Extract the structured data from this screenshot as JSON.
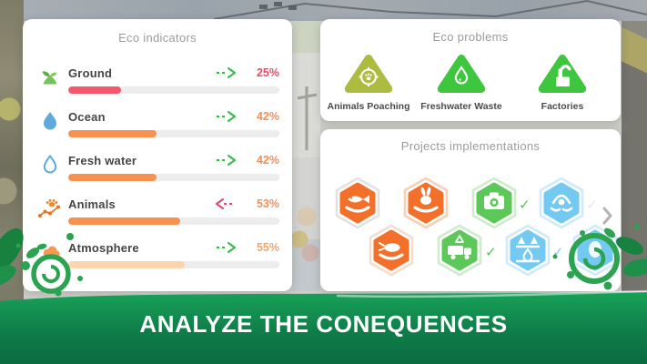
{
  "indicators": {
    "title": "Eco indicators",
    "rows": [
      {
        "label": "Ground",
        "icon": "sprout-icon",
        "value": 25,
        "percent_label": "25%",
        "trend": "right",
        "trend_color": "#35b94a",
        "bar_color": "#f5586e",
        "value_color": "#ee4762"
      },
      {
        "label": "Ocean",
        "icon": "water-drop-icon",
        "value": 42,
        "percent_label": "42%",
        "trend": "right",
        "trend_color": "#35b94a",
        "bar_color": "#f8914e",
        "value_color": "#f68f56"
      },
      {
        "label": "Fresh water",
        "icon": "water-drop-outline-icon",
        "value": 42,
        "percent_label": "42%",
        "trend": "right",
        "trend_color": "#35b94a",
        "bar_color": "#f8914e",
        "value_color": "#f68f56"
      },
      {
        "label": "Animals",
        "icon": "paw-trend-icon",
        "value": 53,
        "percent_label": "53%",
        "trend": "left",
        "trend_color": "#e2476f",
        "bar_color": "#f8914e",
        "value_color": "#f68f56"
      },
      {
        "label": "Atmosphere",
        "icon": "cloud-icon",
        "value": 55,
        "percent_label": "55%",
        "trend": "right",
        "trend_color": "#35b94a",
        "bar_color": "#fbd5ab",
        "value_color": "#f6a368"
      }
    ]
  },
  "problems": {
    "title": "Eco problems",
    "items": [
      {
        "label": "Animals Poaching",
        "icon": "poaching-target-paw-icon",
        "color": "#adbc41"
      },
      {
        "label": "Freshwater Waste",
        "icon": "water-drop-badge-icon",
        "color": "#3fc63f"
      },
      {
        "label": "Factories",
        "icon": "factory-icon",
        "color": "#3fc63f"
      }
    ]
  },
  "projects": {
    "title": "Projects implementations",
    "scroll_icon": "chevron-right-icon",
    "items": [
      {
        "icon": "fish-in-hand-icon",
        "color": "orange",
        "ring": "#e2e2e2",
        "check": null
      },
      {
        "icon": "rabbit-in-hand-icon",
        "color": "orange",
        "ring": "#f6cfb5",
        "check": null
      },
      {
        "icon": "camera-trap-icon",
        "color": "green",
        "ring": "#cdeccb",
        "check": "#52c356"
      },
      {
        "icon": "wildlife-care-icon",
        "color": "blue",
        "ring": "#cfeafb",
        "check": "#dde9ef"
      },
      {
        "icon": "beetle-in-hand-icon",
        "color": "orange",
        "ring": "#f2ddd0",
        "check": null
      },
      {
        "icon": "recycling-truck-icon",
        "color": "green",
        "ring": "#cdeccb",
        "check": "#52c356"
      },
      {
        "icon": "forest-water-icon",
        "color": "blue",
        "ring": "#cfeafb",
        "check": "#7fcef2"
      },
      {
        "icon": "eco-project-icon",
        "color": "blue",
        "ring": "#cfeafb",
        "check": null
      }
    ]
  },
  "banner": {
    "label": "ANALYZE THE CONEQUENCES"
  },
  "colors": {
    "hex": {
      "orange": {
        "fill": "#f2702a"
      },
      "green": {
        "fill": "#5ec75a"
      },
      "blue": {
        "fill": "#74c9f1"
      }
    },
    "banner_top": "#17a257",
    "banner_bottom": "#0b6b41",
    "track": "#ededed",
    "card": "#ffffff",
    "title_gray": "#9b9b9b"
  }
}
